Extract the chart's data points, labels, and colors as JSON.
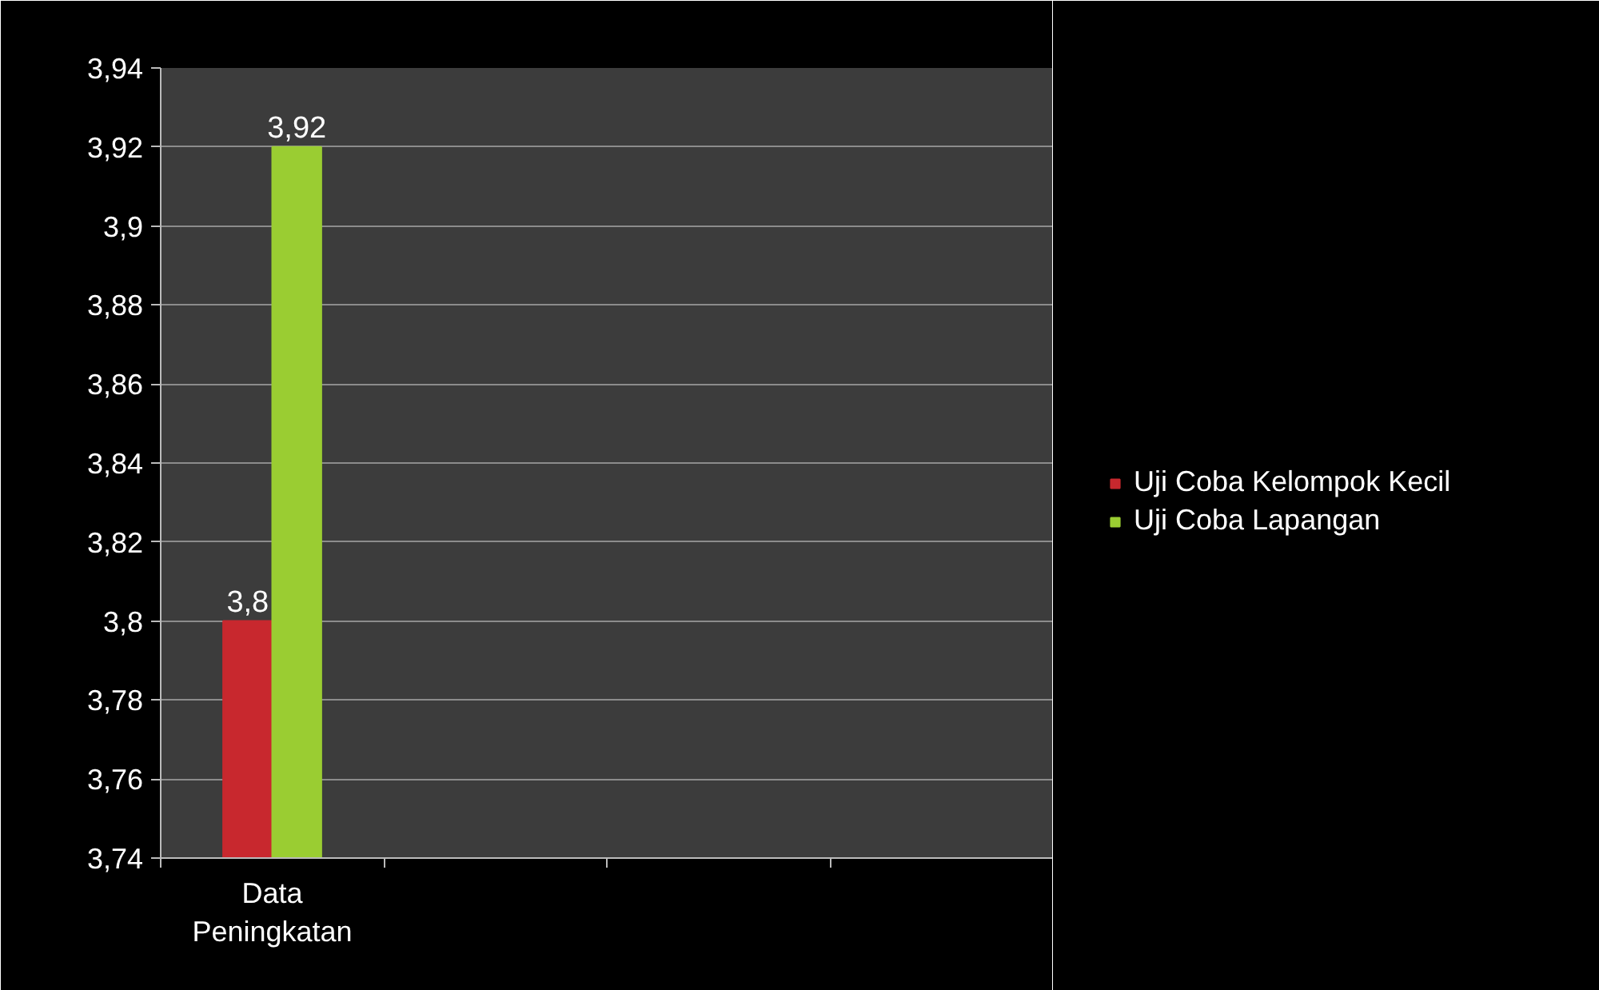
{
  "chart_data": {
    "type": "bar",
    "categories": [
      "Data Peningkatan",
      null,
      null,
      null
    ],
    "series": [
      {
        "name": "Uji Coba Kelompok Kecil",
        "color": "#c8282e",
        "values": [
          3.8,
          null,
          null,
          null
        ],
        "value_labels": [
          "3,8",
          null,
          null,
          null
        ]
      },
      {
        "name": "Uji Coba Lapangan",
        "color": "#9acd32",
        "values": [
          3.92,
          null,
          null,
          null
        ],
        "value_labels": [
          "3,92",
          null,
          null,
          null
        ]
      }
    ],
    "ylim": [
      3.74,
      3.94
    ],
    "yticks": [
      {
        "value": 3.74,
        "label": "3,74"
      },
      {
        "value": 3.76,
        "label": "3,76"
      },
      {
        "value": 3.78,
        "label": "3,78"
      },
      {
        "value": 3.8,
        "label": "3,8"
      },
      {
        "value": 3.82,
        "label": "3,82"
      },
      {
        "value": 3.84,
        "label": "3,84"
      },
      {
        "value": 3.86,
        "label": "3,86"
      },
      {
        "value": 3.88,
        "label": "3,88"
      },
      {
        "value": 3.9,
        "label": "3,9"
      },
      {
        "value": 3.92,
        "label": "3,92"
      },
      {
        "value": 3.94,
        "label": "3,94"
      }
    ],
    "grid": "y",
    "legend": "right",
    "data_labels": true
  }
}
